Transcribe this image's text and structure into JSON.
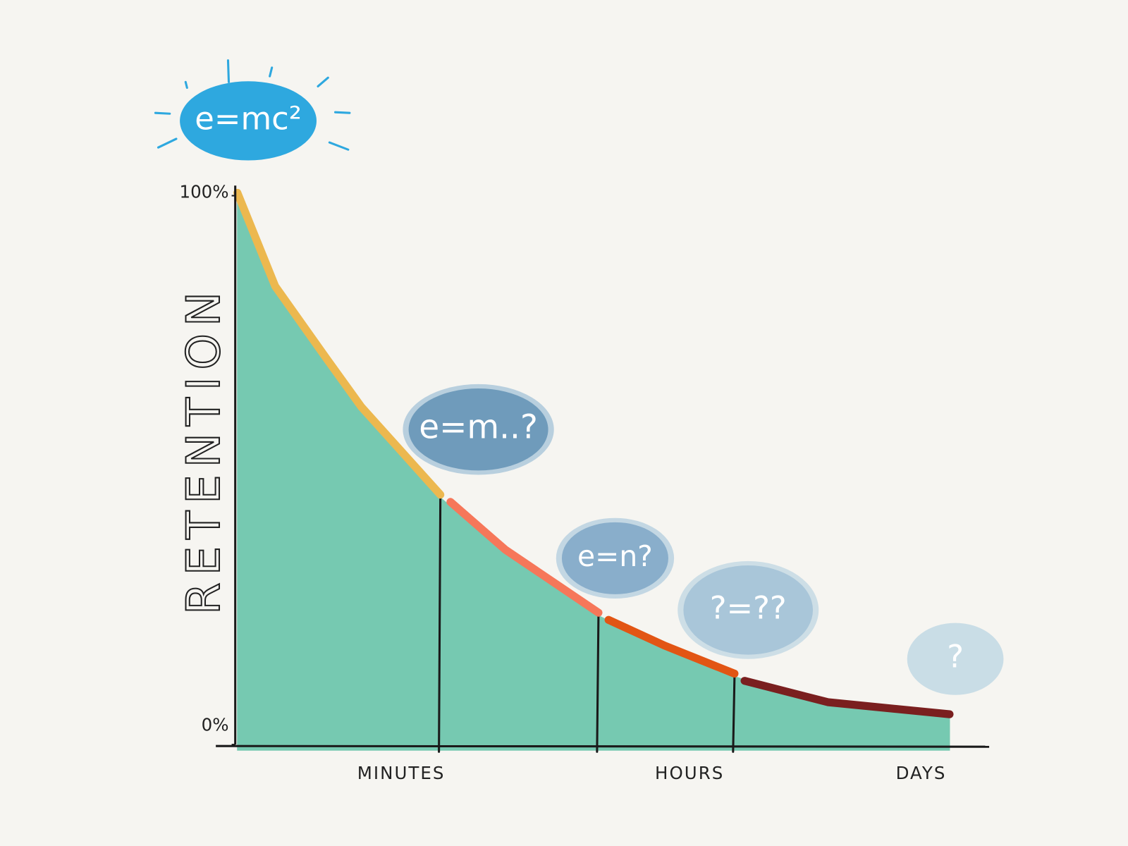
{
  "chart_data": {
    "type": "area",
    "y_label": "RETENTION",
    "ylim": [
      0,
      100
    ],
    "yticks": [
      {
        "value": 100,
        "label": "100%"
      },
      {
        "value": 0,
        "label": "0%"
      }
    ],
    "xlim": [
      0,
      100
    ],
    "xticks": [
      {
        "value": 23,
        "label": "MINUTES"
      },
      {
        "value": 63.5,
        "label": "HOURS"
      },
      {
        "value": 96,
        "label": "DAYS"
      }
    ],
    "dividers": [
      28.5,
      50.7,
      69.8
    ],
    "fill": "#76c9b1",
    "series": [
      {
        "color": "#ecb84f",
        "x": [
          0,
          5.3,
          12.4,
          17.4,
          28.5
        ],
        "values": [
          100,
          83,
          70,
          61,
          45
        ]
      },
      {
        "color": "#f6775a",
        "x": [
          28.5,
          37.6,
          50.7
        ],
        "values": [
          45,
          35,
          23.5
        ]
      },
      {
        "color": "#e25514",
        "x": [
          50.7,
          60,
          69.8
        ],
        "values": [
          23.5,
          17.5,
          12.4
        ]
      },
      {
        "color": "#7a1f1f",
        "x": [
          69.8,
          82.9,
          100
        ],
        "values": [
          12.4,
          7.2,
          5
        ]
      }
    ],
    "annotations": [
      {
        "text": "e=mc²"
      },
      {
        "text": "e=m..?"
      },
      {
        "text": "e=n?"
      },
      {
        "text": "?=??"
      },
      {
        "text": "?"
      }
    ]
  }
}
